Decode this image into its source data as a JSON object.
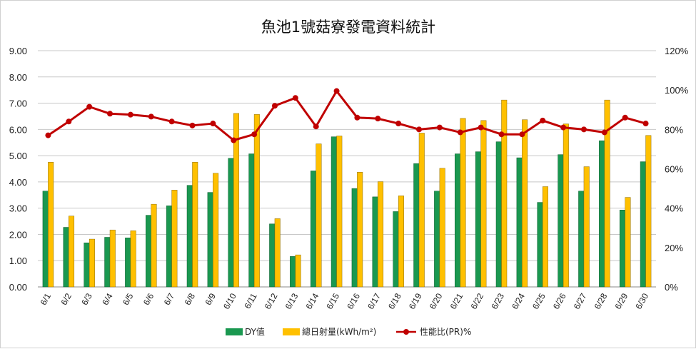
{
  "chart_data": {
    "type": "bar",
    "title": "魚池1號菇寮發電資料統計",
    "categories": [
      "6/1",
      "6/2",
      "6/3",
      "6/4",
      "6/5",
      "6/6",
      "6/7",
      "6/8",
      "6/9",
      "6/10",
      "6/11",
      "6/12",
      "6/13",
      "6/14",
      "6/15",
      "6/16",
      "6/17",
      "6/18",
      "6/19",
      "6/20",
      "6/21",
      "6/22",
      "6/23",
      "6/24",
      "6/25",
      "6/26",
      "6/27",
      "6/28",
      "6/29",
      "6/30"
    ],
    "y_left": {
      "ylim": [
        0,
        9
      ],
      "ticks": [
        "0.00",
        "1.00",
        "2.00",
        "3.00",
        "4.00",
        "5.00",
        "6.00",
        "7.00",
        "8.00",
        "9.00"
      ]
    },
    "y_right": {
      "ylim": [
        0,
        120
      ],
      "ticks": [
        "0%",
        "20%",
        "40%",
        "60%",
        "80%",
        "100%",
        "120%"
      ]
    },
    "grid": true,
    "legend_position": "bottom",
    "series": [
      {
        "name": "DY值",
        "type": "bar",
        "axis": "left",
        "color": "#1a9850",
        "values": [
          3.65,
          2.27,
          1.68,
          1.89,
          1.87,
          2.73,
          3.09,
          3.87,
          3.6,
          4.9,
          5.07,
          2.4,
          1.16,
          4.42,
          5.72,
          3.75,
          3.43,
          2.87,
          4.7,
          3.65,
          5.07,
          5.15,
          5.53,
          4.92,
          3.22,
          5.04,
          3.65,
          5.57,
          2.93,
          4.77
        ]
      },
      {
        "name": "總日射量(kWh/m²)",
        "type": "bar",
        "axis": "left",
        "color": "#ffc000",
        "values": [
          4.75,
          2.7,
          1.82,
          2.17,
          2.14,
          3.15,
          3.69,
          4.75,
          4.33,
          6.61,
          6.57,
          2.6,
          1.22,
          5.45,
          5.75,
          4.37,
          4.01,
          3.47,
          5.86,
          4.52,
          6.42,
          6.34,
          7.12,
          6.37,
          3.82,
          6.21,
          4.58,
          7.12,
          3.41,
          5.77
        ]
      },
      {
        "name": "性能比(PR)%",
        "type": "line",
        "axis": "right",
        "color": "#c00000",
        "values": [
          77,
          84,
          91.5,
          88,
          87.5,
          86.5,
          84,
          82,
          83,
          74.5,
          77.5,
          92,
          96,
          81.5,
          99.5,
          86,
          85.5,
          83,
          80,
          81,
          78.5,
          81,
          77.5,
          77.5,
          84.5,
          81,
          80,
          78.5,
          86,
          83
        ]
      }
    ]
  }
}
